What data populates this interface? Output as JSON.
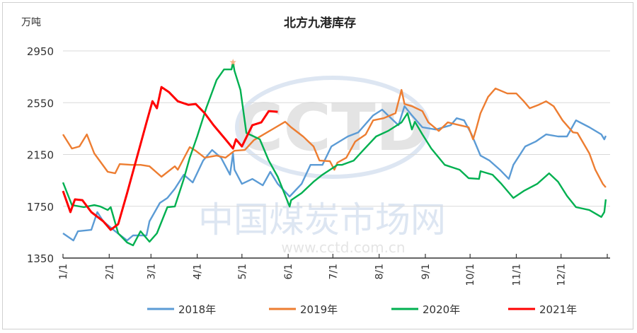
{
  "chart_data": {
    "type": "line",
    "title": "北方九港库存",
    "ylabel": "万吨",
    "xlabel": "",
    "ylim": [
      1350,
      2950
    ],
    "yticks": [
      "2950",
      "2550",
      "2150",
      "1750",
      "1350"
    ],
    "xticks": [
      "1/1",
      "2/1",
      "3/1",
      "4/1",
      "5/1",
      "6/1",
      "7/1",
      "8/1",
      "9/1",
      "10/1",
      "11/1",
      "12/1"
    ],
    "grid": true,
    "legend_position": "bottom",
    "watermark": {
      "logo": "CCTD",
      "name": "中国煤炭市场网",
      "url": "www.cctd.com.cn"
    },
    "peak_marker": {
      "series": "2020年",
      "date": "04-25",
      "value": 2862,
      "color": "#f4b183"
    },
    "series": [
      {
        "name": "2018年",
        "color": "#5b9bd5",
        "points": [
          [
            "01-01",
            1541
          ],
          [
            "01-08",
            1486
          ],
          [
            "01-11",
            1557
          ],
          [
            "01-20",
            1568
          ],
          [
            "01-24",
            1705
          ],
          [
            "01-28",
            1634
          ],
          [
            "02-05",
            1557
          ],
          [
            "02-13",
            1486
          ],
          [
            "02-17",
            1525
          ],
          [
            "02-26",
            1525
          ],
          [
            "02-28",
            1634
          ],
          [
            "03-07",
            1776
          ],
          [
            "03-12",
            1814
          ],
          [
            "03-17",
            1885
          ],
          [
            "03-23",
            1994
          ],
          [
            "03-29",
            1934
          ],
          [
            "04-05",
            2103
          ],
          [
            "04-11",
            2185
          ],
          [
            "04-17",
            2125
          ],
          [
            "04-23",
            1994
          ],
          [
            "04-25",
            2158
          ],
          [
            "04-26",
            2032
          ],
          [
            "05-01",
            1923
          ],
          [
            "05-08",
            1961
          ],
          [
            "05-15",
            1912
          ],
          [
            "05-20",
            2016
          ],
          [
            "05-25",
            1923
          ],
          [
            "06-02",
            1825
          ],
          [
            "06-10",
            1923
          ],
          [
            "06-16",
            2070
          ],
          [
            "06-24",
            2070
          ],
          [
            "06-30",
            2212
          ],
          [
            "07-11",
            2289
          ],
          [
            "07-18",
            2321
          ],
          [
            "07-28",
            2452
          ],
          [
            "08-03",
            2496
          ],
          [
            "08-07",
            2452
          ],
          [
            "08-14",
            2376
          ],
          [
            "08-18",
            2523
          ],
          [
            "08-23",
            2452
          ],
          [
            "08-30",
            2360
          ],
          [
            "09-08",
            2343
          ],
          [
            "09-18",
            2376
          ],
          [
            "09-22",
            2430
          ],
          [
            "09-27",
            2414
          ],
          [
            "10-02",
            2305
          ],
          [
            "10-08",
            2141
          ],
          [
            "10-14",
            2103
          ],
          [
            "10-21",
            2032
          ],
          [
            "10-27",
            1961
          ],
          [
            "10-30",
            2070
          ],
          [
            "11-07",
            2212
          ],
          [
            "11-14",
            2250
          ],
          [
            "11-21",
            2305
          ],
          [
            "11-29",
            2289
          ],
          [
            "12-05",
            2289
          ],
          [
            "12-11",
            2414
          ],
          [
            "12-20",
            2360
          ],
          [
            "12-28",
            2305
          ],
          [
            "12-30",
            2267
          ],
          [
            "12-31",
            2294
          ]
        ]
      },
      {
        "name": "2019年",
        "color": "#ed7d31",
        "points": [
          [
            "01-01",
            2305
          ],
          [
            "01-07",
            2196
          ],
          [
            "01-12",
            2212
          ],
          [
            "01-17",
            2305
          ],
          [
            "01-22",
            2158
          ],
          [
            "01-31",
            2016
          ],
          [
            "02-05",
            2005
          ],
          [
            "02-08",
            2076
          ],
          [
            "02-16",
            2070
          ],
          [
            "02-22",
            2070
          ],
          [
            "02-28",
            2059
          ],
          [
            "03-08",
            1978
          ],
          [
            "03-17",
            2059
          ],
          [
            "03-19",
            2032
          ],
          [
            "03-27",
            2207
          ],
          [
            "03-31",
            2179
          ],
          [
            "04-06",
            2125
          ],
          [
            "04-14",
            2141
          ],
          [
            "04-20",
            2125
          ],
          [
            "04-26",
            2179
          ],
          [
            "05-03",
            2185
          ],
          [
            "05-09",
            2261
          ],
          [
            "05-14",
            2294
          ],
          [
            "05-22",
            2349
          ],
          [
            "05-30",
            2403
          ],
          [
            "06-03",
            2360
          ],
          [
            "06-11",
            2289
          ],
          [
            "06-18",
            2212
          ],
          [
            "06-22",
            2103
          ],
          [
            "06-29",
            2098
          ],
          [
            "07-02",
            2032
          ],
          [
            "07-04",
            2087
          ],
          [
            "07-10",
            2125
          ],
          [
            "07-16",
            2250
          ],
          [
            "07-23",
            2305
          ],
          [
            "07-28",
            2414
          ],
          [
            "08-04",
            2430
          ],
          [
            "08-12",
            2469
          ],
          [
            "08-16",
            2649
          ],
          [
            "08-18",
            2540
          ],
          [
            "08-23",
            2523
          ],
          [
            "08-30",
            2485
          ],
          [
            "09-03",
            2398
          ],
          [
            "09-10",
            2332
          ],
          [
            "09-16",
            2398
          ],
          [
            "09-24",
            2376
          ],
          [
            "09-30",
            2360
          ],
          [
            "10-03",
            2267
          ],
          [
            "10-05",
            2343
          ],
          [
            "10-08",
            2469
          ],
          [
            "10-13",
            2594
          ],
          [
            "10-18",
            2660
          ],
          [
            "10-26",
            2621
          ],
          [
            "11-01",
            2621
          ],
          [
            "11-06",
            2561
          ],
          [
            "11-10",
            2507
          ],
          [
            "11-16",
            2534
          ],
          [
            "11-21",
            2561
          ],
          [
            "11-26",
            2523
          ],
          [
            "12-02",
            2414
          ],
          [
            "12-09",
            2321
          ],
          [
            "12-12",
            2316
          ],
          [
            "12-20",
            2158
          ],
          [
            "12-24",
            2032
          ],
          [
            "12-29",
            1923
          ],
          [
            "12-31",
            1896
          ]
        ]
      },
      {
        "name": "2020年",
        "color": "#00b050",
        "points": [
          [
            "01-01",
            1934
          ],
          [
            "01-07",
            1759
          ],
          [
            "01-15",
            1743
          ],
          [
            "01-22",
            1759
          ],
          [
            "01-26",
            1748
          ],
          [
            "01-31",
            1721
          ],
          [
            "02-02",
            1743
          ],
          [
            "02-07",
            1541
          ],
          [
            "02-13",
            1470
          ],
          [
            "02-17",
            1448
          ],
          [
            "02-22",
            1557
          ],
          [
            "02-28",
            1476
          ],
          [
            "03-05",
            1541
          ],
          [
            "03-12",
            1743
          ],
          [
            "03-17",
            1748
          ],
          [
            "03-23",
            1961
          ],
          [
            "03-27",
            2125
          ],
          [
            "04-01",
            2289
          ],
          [
            "04-07",
            2507
          ],
          [
            "04-14",
            2725
          ],
          [
            "04-19",
            2807
          ],
          [
            "04-24",
            2807
          ],
          [
            "04-25",
            2862
          ],
          [
            "04-26",
            2796
          ],
          [
            "04-30",
            2649
          ],
          [
            "05-04",
            2316
          ],
          [
            "05-09",
            2289
          ],
          [
            "05-13",
            2267
          ],
          [
            "05-19",
            2103
          ],
          [
            "05-25",
            1978
          ],
          [
            "06-02",
            1748
          ],
          [
            "06-03",
            1797
          ],
          [
            "06-10",
            1852
          ],
          [
            "06-18",
            1939
          ],
          [
            "06-24",
            1994
          ],
          [
            "07-04",
            2070
          ],
          [
            "07-07",
            2070
          ],
          [
            "07-15",
            2103
          ],
          [
            "07-21",
            2179
          ],
          [
            "07-30",
            2289
          ],
          [
            "08-07",
            2332
          ],
          [
            "08-16",
            2398
          ],
          [
            "08-20",
            2469
          ],
          [
            "08-23",
            2343
          ],
          [
            "08-25",
            2403
          ],
          [
            "08-30",
            2305
          ],
          [
            "09-05",
            2196
          ],
          [
            "09-14",
            2070
          ],
          [
            "09-24",
            2032
          ],
          [
            "09-30",
            1967
          ],
          [
            "10-07",
            1961
          ],
          [
            "10-08",
            2021
          ],
          [
            "10-16",
            1994
          ],
          [
            "10-22",
            1923
          ],
          [
            "10-30",
            1814
          ],
          [
            "11-06",
            1868
          ],
          [
            "11-15",
            1923
          ],
          [
            "11-23",
            2005
          ],
          [
            "11-29",
            1939
          ],
          [
            "12-05",
            1830
          ],
          [
            "12-11",
            1743
          ],
          [
            "12-20",
            1721
          ],
          [
            "12-28",
            1667
          ],
          [
            "12-30",
            1705
          ],
          [
            "12-31",
            1803
          ]
        ]
      },
      {
        "name": "2021年",
        "color": "#ff0000",
        "points": [
          [
            "01-01",
            1868
          ],
          [
            "01-06",
            1705
          ],
          [
            "01-09",
            1803
          ],
          [
            "01-14",
            1797
          ],
          [
            "01-20",
            1705
          ],
          [
            "01-28",
            1634
          ],
          [
            "02-02",
            1568
          ],
          [
            "02-07",
            1612
          ],
          [
            "02-13",
            1852
          ],
          [
            "02-19",
            2103
          ],
          [
            "02-26",
            2398
          ],
          [
            "03-02",
            2561
          ],
          [
            "03-05",
            2507
          ],
          [
            "03-08",
            2671
          ],
          [
            "03-13",
            2632
          ],
          [
            "03-19",
            2561
          ],
          [
            "03-26",
            2534
          ],
          [
            "03-31",
            2540
          ],
          [
            "04-06",
            2469
          ],
          [
            "04-12",
            2376
          ],
          [
            "04-20",
            2267
          ],
          [
            "04-25",
            2196
          ],
          [
            "04-27",
            2267
          ],
          [
            "05-01",
            2212
          ],
          [
            "05-08",
            2376
          ],
          [
            "05-14",
            2398
          ],
          [
            "05-19",
            2485
          ],
          [
            "05-25",
            2480
          ]
        ]
      }
    ]
  }
}
